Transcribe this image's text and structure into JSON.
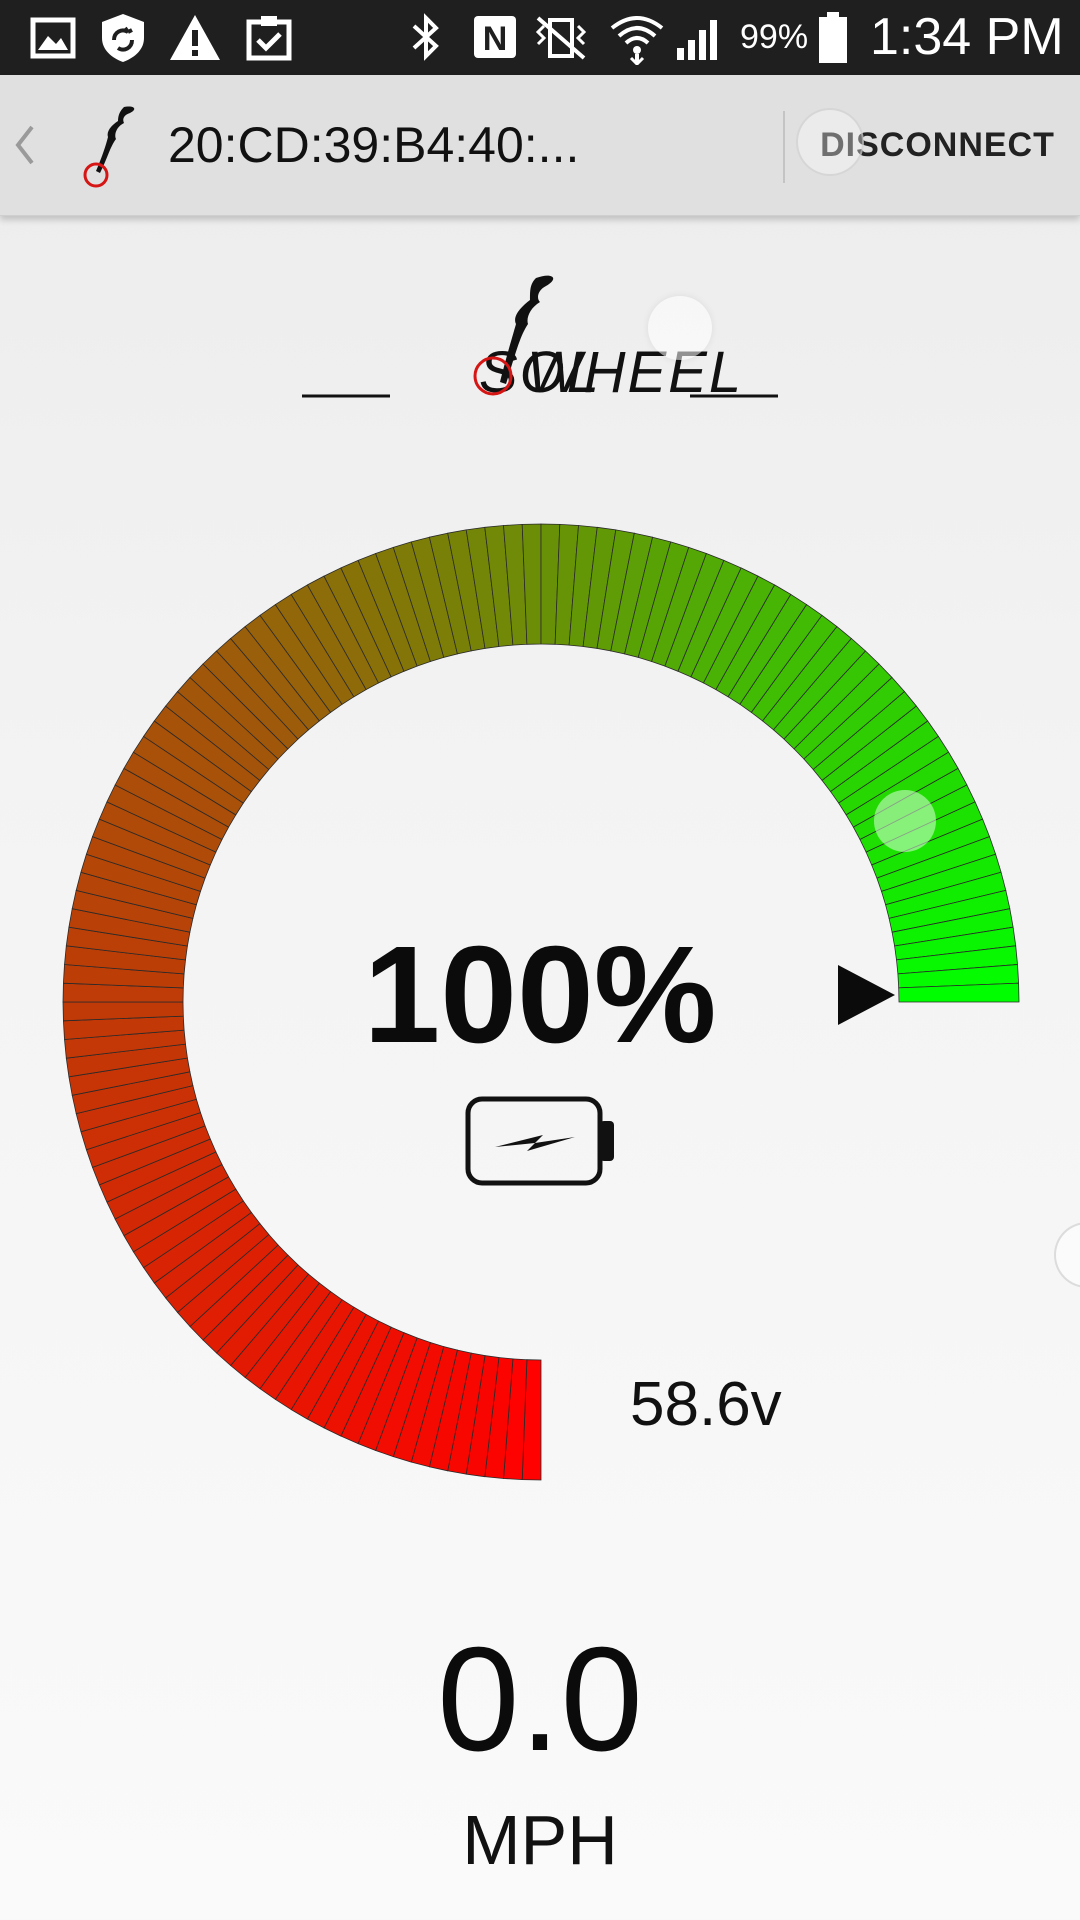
{
  "status_bar": {
    "battery_percent": "99%",
    "time": "1:34 PM",
    "icons": [
      "gallery-icon",
      "shield-sync-icon",
      "warning-icon",
      "clipboard-check-icon",
      "bluetooth-icon",
      "nfc-icon",
      "vibrate-mute-icon",
      "wifi-icon",
      "signal-icon",
      "battery-icon"
    ]
  },
  "action_bar": {
    "title": "20:CD:39:B4:40:...",
    "disconnect_label": "DISCONNECT"
  },
  "gauge": {
    "level": 1.0,
    "percent_label": "100%",
    "voltage": "58.6v",
    "color_low": "#ff0000",
    "color_mid": "#a0580a",
    "color_high": "#00ff00"
  },
  "speed": {
    "value": "0.0",
    "unit": "MPH"
  }
}
